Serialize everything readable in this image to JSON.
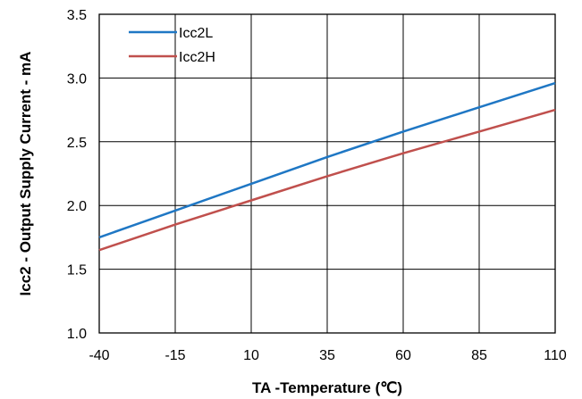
{
  "chart_data": {
    "type": "line",
    "xlabel": "TA -Temperature (℃)",
    "ylabel": "Icc2 - Output Supply Current - mA",
    "xlim": [
      -40,
      110
    ],
    "ylim": [
      1.0,
      3.5
    ],
    "xticks": [
      -40,
      -15,
      10,
      35,
      60,
      85,
      110
    ],
    "yticks": [
      1.0,
      1.5,
      2.0,
      2.5,
      3.0,
      3.5
    ],
    "xtick_labels": [
      "-40",
      "-15",
      "10",
      "35",
      "60",
      "85",
      "110"
    ],
    "ytick_labels": [
      "1.0",
      "1.5",
      "2.0",
      "2.5",
      "3.0",
      "3.5"
    ],
    "grid": true,
    "legend_position": "top-left",
    "series": [
      {
        "name": "Icc2L",
        "color": "#1f77c4",
        "x": [
          -40,
          -15,
          10,
          35,
          60,
          85,
          110
        ],
        "y": [
          1.75,
          1.96,
          2.17,
          2.38,
          2.58,
          2.77,
          2.96
        ]
      },
      {
        "name": "Icc2H",
        "color": "#c0504d",
        "x": [
          -40,
          -15,
          10,
          35,
          60,
          85,
          110
        ],
        "y": [
          1.65,
          1.85,
          2.04,
          2.23,
          2.41,
          2.58,
          2.75
        ]
      }
    ]
  }
}
